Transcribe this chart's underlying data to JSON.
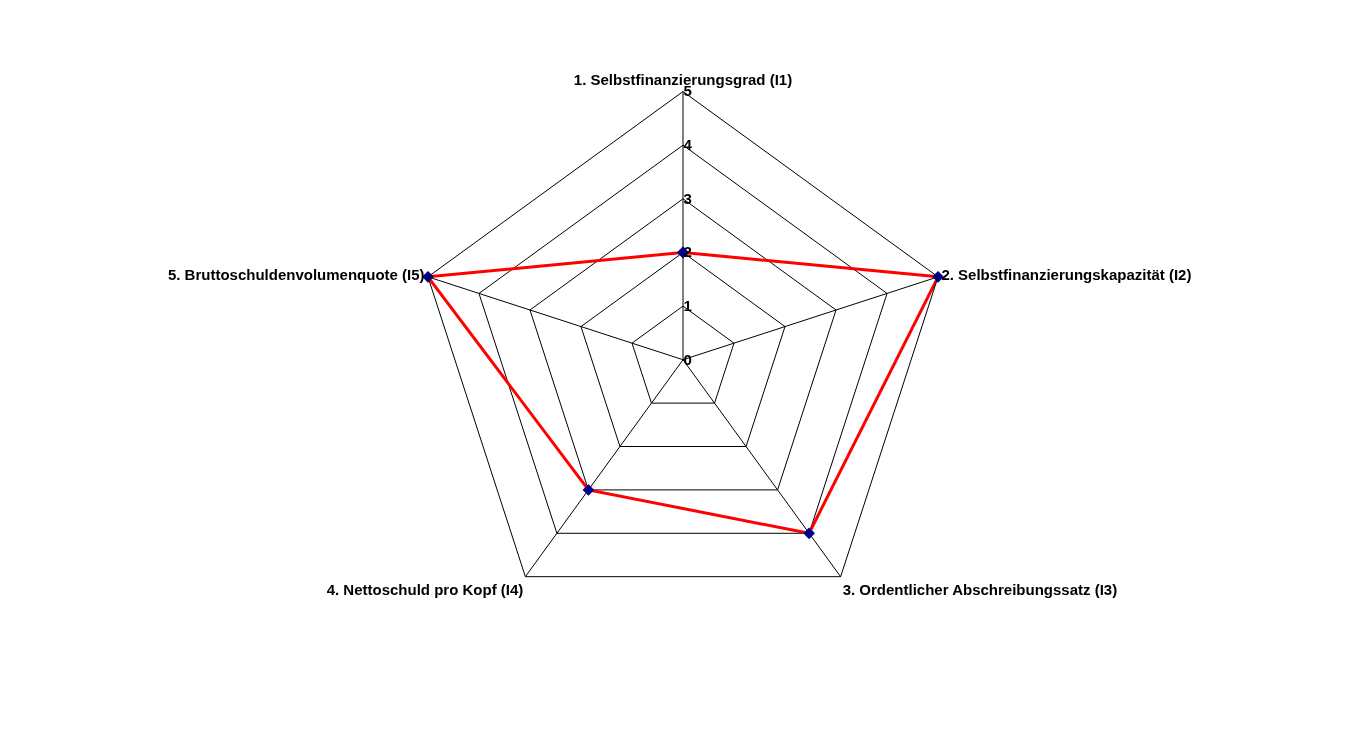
{
  "chart_data": {
    "type": "radar",
    "categories": [
      "1. Selbstfinanzierungsgrad (I1)",
      "2. Selbstfinanzierungskapazität (I2)",
      "3. Ordentlicher Abschreibungssatz (I3)",
      "4. Nettoschuld pro Kopf (I4)",
      "5. Bruttoschuldenvolumenquote (I5)"
    ],
    "series": [
      {
        "color": "#ff0000",
        "colors": [
          "#00008b",
          "#00008b",
          "#00008b",
          "#00008b",
          "#00008b"
        ],
        "values": [
          2,
          5,
          4,
          3,
          5
        ]
      }
    ],
    "ylim": [
      0,
      5
    ],
    "yticks": [
      0,
      1,
      2,
      3,
      4,
      5
    ],
    "grid": true,
    "marker": "diamond",
    "line_style": "solid"
  }
}
